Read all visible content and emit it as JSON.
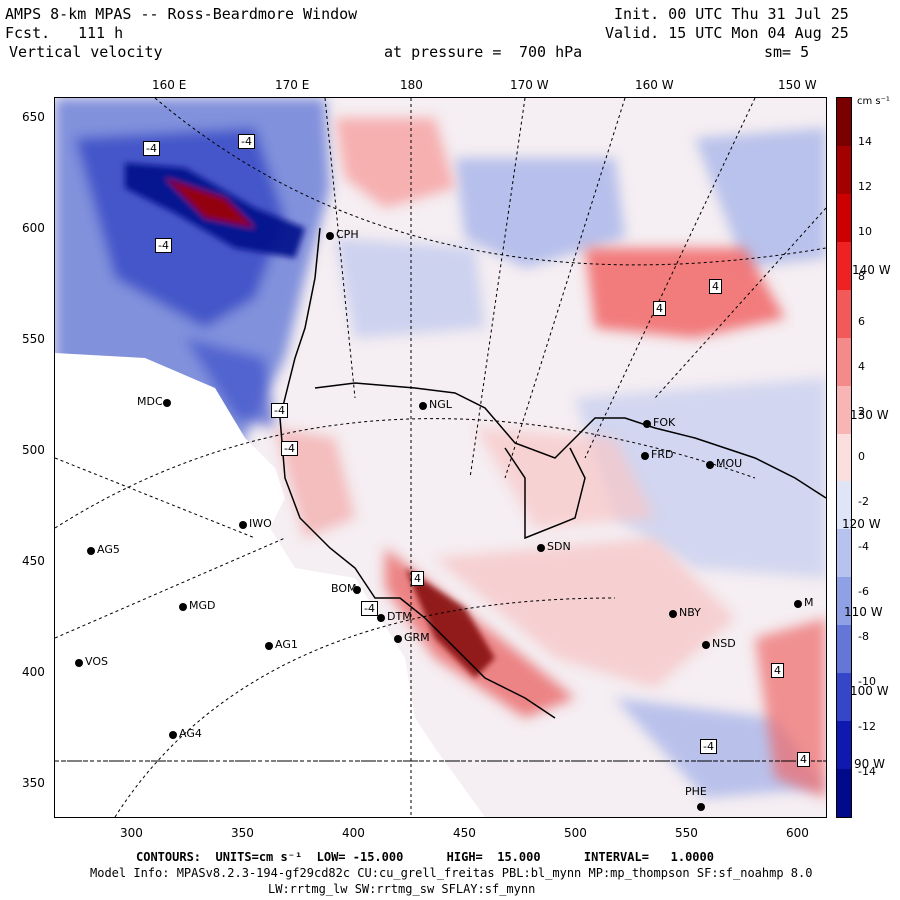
{
  "header": {
    "title": "AMPS 8-km MPAS -- Ross-Beardmore Window",
    "fcst_label": "Fcst.",
    "fcst_value": "111 h",
    "field": "Vertical velocity",
    "init": "Init. 00 UTC Thu 31 Jul 25",
    "valid": "Valid. 15 UTC Mon 04 Aug 25",
    "level_label": "at pressure =",
    "level_value": "700 hPa",
    "smoothing": "sm= 5"
  },
  "top_ticks": [
    "160 E",
    "170 E",
    "180",
    "170 W",
    "160 W",
    "150 W"
  ],
  "right_lon_labels": [
    "140 W",
    "130 W",
    "120 W",
    "110 W",
    "100 W",
    "90 W"
  ],
  "y_ticks": [
    "650",
    "600",
    "550",
    "500",
    "450",
    "400",
    "350"
  ],
  "x_ticks": [
    "300",
    "350",
    "400",
    "450",
    "500",
    "550",
    "600"
  ],
  "colorbar": {
    "unit": "cm s⁻¹",
    "tick_labels": [
      "14",
      "12",
      "10",
      "8",
      "6",
      "4",
      "2",
      "0",
      "-2",
      "-4",
      "-6",
      "-8",
      "-10",
      "-12",
      "-14"
    ],
    "colors": [
      "#7a0000",
      "#a30000",
      "#cc0000",
      "#ee2222",
      "#f25a5a",
      "#f48a8a",
      "#f7b5b5",
      "#fbdede",
      "#dfe4f6",
      "#b7c3ee",
      "#8fa0e4",
      "#6577d6",
      "#3547c8",
      "#0f19b0",
      "#000a8a"
    ]
  },
  "stations": [
    {
      "name": "MDC"
    },
    {
      "name": "NGL"
    },
    {
      "name": "FOK"
    },
    {
      "name": "FRD"
    },
    {
      "name": "MOU"
    },
    {
      "name": "IWO"
    },
    {
      "name": "AG5"
    },
    {
      "name": "SDN"
    },
    {
      "name": "MGD"
    },
    {
      "name": "BOM"
    },
    {
      "name": "DTM"
    },
    {
      "name": "GRM"
    },
    {
      "name": "NBY"
    },
    {
      "name": "AG1"
    },
    {
      "name": "VOS"
    },
    {
      "name": "NSD"
    },
    {
      "name": "AG4"
    },
    {
      "name": "CPH"
    },
    {
      "name": "M"
    },
    {
      "name": "PHE"
    }
  ],
  "contour_labels": [
    "-4",
    "-4",
    "-4",
    "4",
    "4",
    "-4",
    "-4",
    "4",
    "-4",
    "4",
    "-4",
    "4"
  ],
  "footer": {
    "contours": "CONTOURS:  UNITS=cm s⁻¹  LOW= -15.000      HIGH=  15.000      INTERVAL=   1.0000",
    "model_info": "Model Info: MPASv8.2.3-194-gf29cd82c CU:cu_grell_freitas PBL:bl_mynn MP:mp_thompson SF:sf_noahmp 8.0",
    "model_info2": "LW:rrtmg_lw SW:rrtmg_sw SFLAY:sf_mynn"
  }
}
